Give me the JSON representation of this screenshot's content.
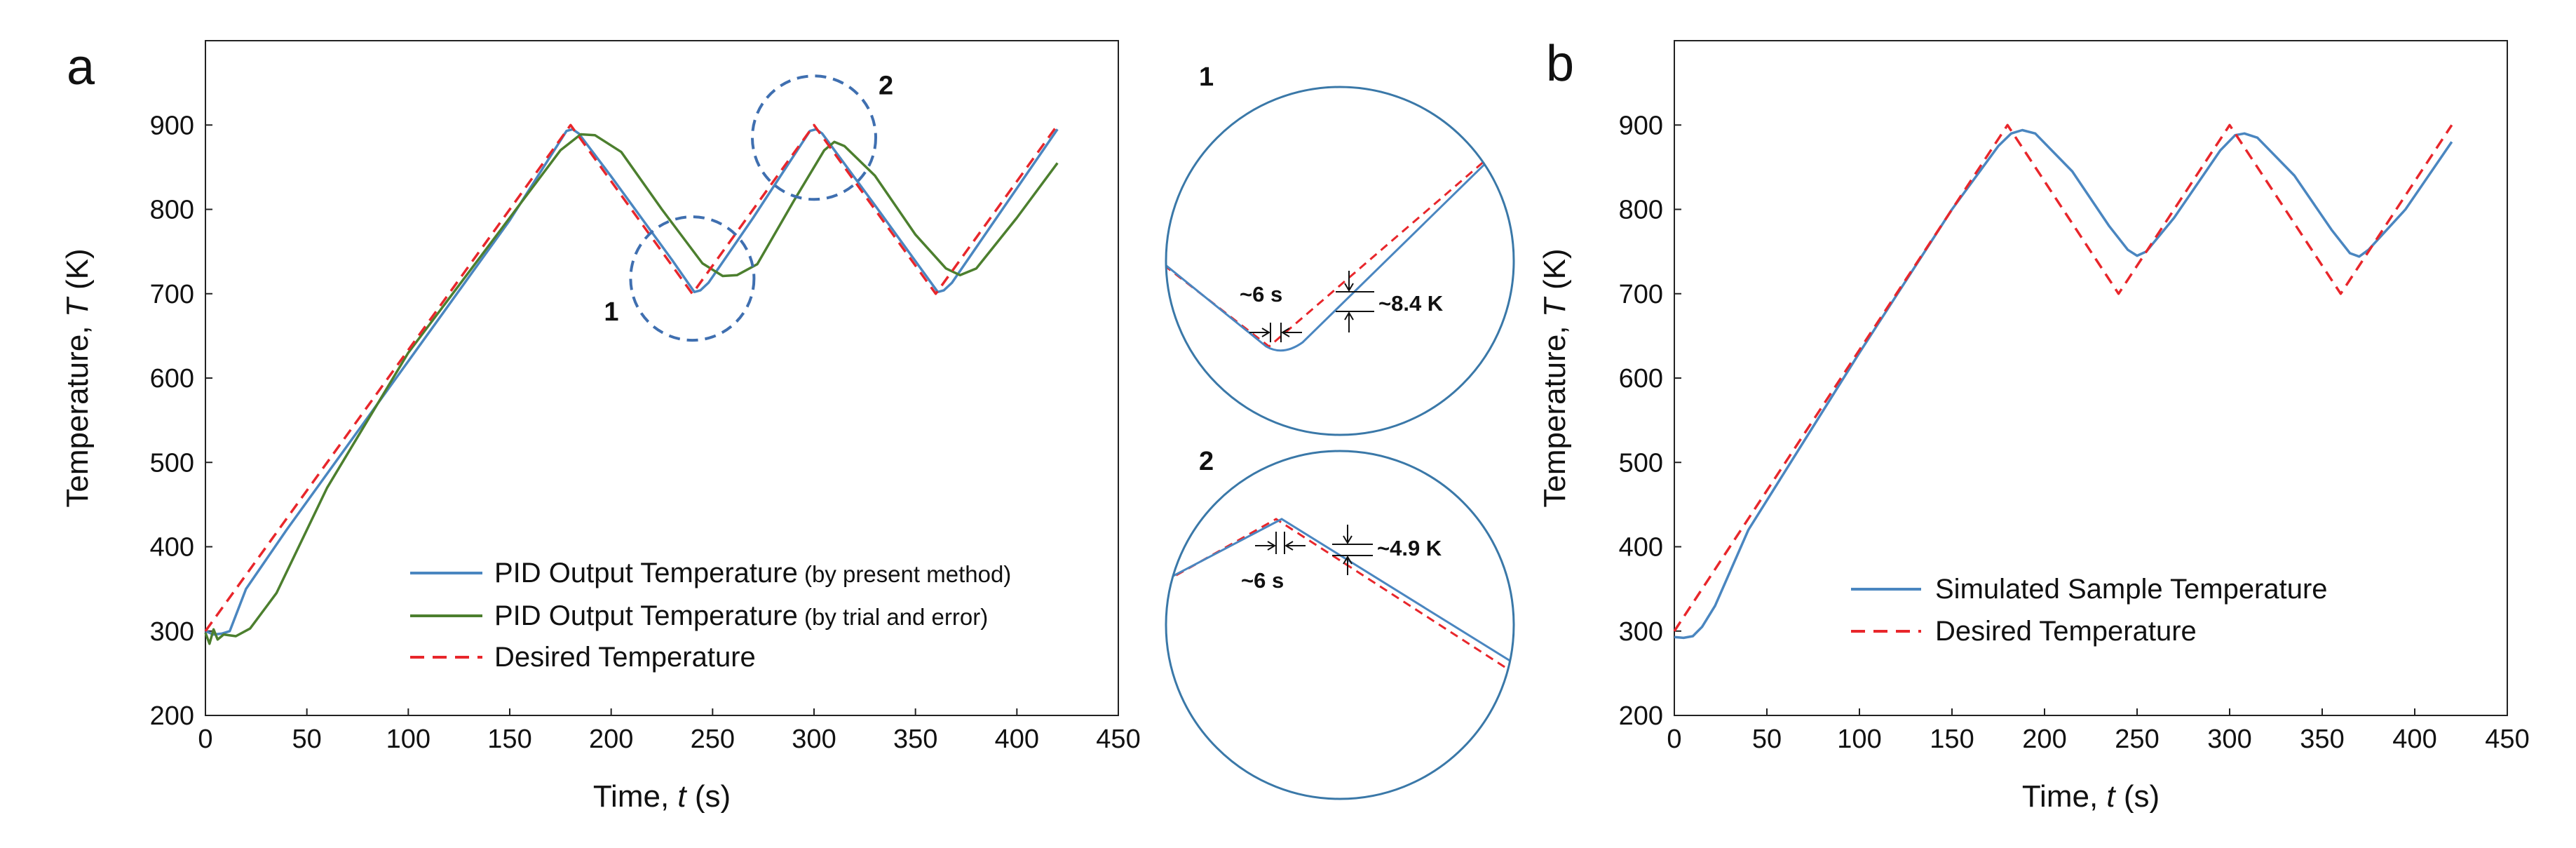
{
  "colors": {
    "pid_present": "#4a86c0",
    "pid_trial": "#4c7f2e",
    "desired": "#e8262b",
    "dashed_circle": "#3f6fb0",
    "zoom_circle": "#3a78a8"
  },
  "chart_data": [
    {
      "id": "a",
      "type": "line",
      "panel_label": "a",
      "xlabel": "Time, ",
      "xlabel_var": "t",
      "xlabel_unit": " (s)",
      "ylabel": "Temperature, ",
      "ylabel_var": "T",
      "ylabel_unit": " (K)",
      "xlim": [
        0,
        450
      ],
      "ylim": [
        200,
        1000
      ],
      "xticks": [
        0,
        50,
        100,
        150,
        200,
        250,
        300,
        350,
        400,
        450
      ],
      "yticks": [
        200,
        300,
        400,
        500,
        600,
        700,
        800,
        900
      ],
      "series": [
        {
          "name": "PID Output Temperature",
          "name_note": " (by present method)",
          "color_key": "pid_present",
          "style": "solid",
          "x": [
            0,
            4,
            8,
            12,
            20,
            40,
            100,
            150,
            178,
            181,
            184,
            200,
            230,
            241,
            244,
            248,
            270,
            298,
            301,
            304,
            330,
            361,
            364,
            368,
            390,
            420
          ],
          "y": [
            300,
            296,
            297,
            300,
            350,
            420,
            620,
            787,
            893,
            895,
            890,
            839,
            740,
            702,
            704,
            713,
            790,
            893,
            895,
            890,
            805,
            702,
            704,
            713,
            790,
            895
          ]
        },
        {
          "name": "PID Output Temperature",
          "name_note": " (by trial and error)",
          "color_key": "pid_trial",
          "style": "solid",
          "x": [
            0,
            2,
            4,
            6,
            9,
            15,
            22,
            35,
            60,
            100,
            150,
            175,
            185,
            192,
            205,
            225,
            245,
            255,
            262,
            272,
            290,
            305,
            310,
            315,
            330,
            350,
            365,
            372,
            380,
            400,
            420
          ],
          "y": [
            298,
            285,
            302,
            290,
            296,
            294,
            303,
            345,
            470,
            630,
            790,
            870,
            889,
            888,
            868,
            800,
            736,
            721,
            722,
            735,
            810,
            870,
            880,
            875,
            840,
            770,
            730,
            722,
            730,
            790,
            855
          ]
        },
        {
          "name": "Desired Temperature",
          "name_note": "",
          "color_key": "desired",
          "style": "dashed",
          "x": [
            0,
            180,
            240,
            300,
            360,
            420
          ],
          "y": [
            300,
            900,
            700,
            900,
            700,
            900
          ]
        }
      ],
      "annotations": [
        {
          "label": "1",
          "cx": 240,
          "cy": 718
        },
        {
          "label": "2",
          "cx": 300,
          "cy": 885
        }
      ]
    },
    {
      "id": "b",
      "type": "line",
      "panel_label": "b",
      "xlabel": "Time, ",
      "xlabel_var": "t",
      "xlabel_unit": " (s)",
      "ylabel": "Temperature, ",
      "ylabel_var": "T",
      "ylabel_unit": " (K)",
      "xlim": [
        0,
        450
      ],
      "ylim": [
        200,
        1000
      ],
      "xticks": [
        0,
        50,
        100,
        150,
        200,
        250,
        300,
        350,
        400,
        450
      ],
      "yticks": [
        200,
        300,
        400,
        500,
        600,
        700,
        800,
        900
      ],
      "series": [
        {
          "name": "Simulated Sample Temperature",
          "name_note": "",
          "color_key": "pid_present",
          "style": "solid",
          "x": [
            0,
            5,
            10,
            15,
            22,
            40,
            100,
            150,
            175,
            182,
            188,
            195,
            215,
            235,
            245,
            250,
            255,
            270,
            295,
            303,
            308,
            315,
            335,
            355,
            365,
            370,
            375,
            395,
            420
          ],
          "y": [
            293,
            292,
            294,
            305,
            330,
            420,
            630,
            800,
            875,
            890,
            894,
            890,
            845,
            780,
            752,
            745,
            750,
            790,
            870,
            888,
            890,
            885,
            840,
            776,
            748,
            744,
            752,
            800,
            880
          ]
        },
        {
          "name": "Desired Temperature",
          "name_note": "",
          "color_key": "desired",
          "style": "dashed",
          "x": [
            0,
            180,
            240,
            300,
            360,
            420
          ],
          "y": [
            300,
            900,
            700,
            900,
            700,
            900
          ]
        }
      ]
    }
  ],
  "zooms": [
    {
      "label": "1",
      "dt_label": "~6 s",
      "dT_label": "~8.4 K"
    },
    {
      "label": "2",
      "dt_label": "~6 s",
      "dT_label": "~4.9 K"
    }
  ]
}
